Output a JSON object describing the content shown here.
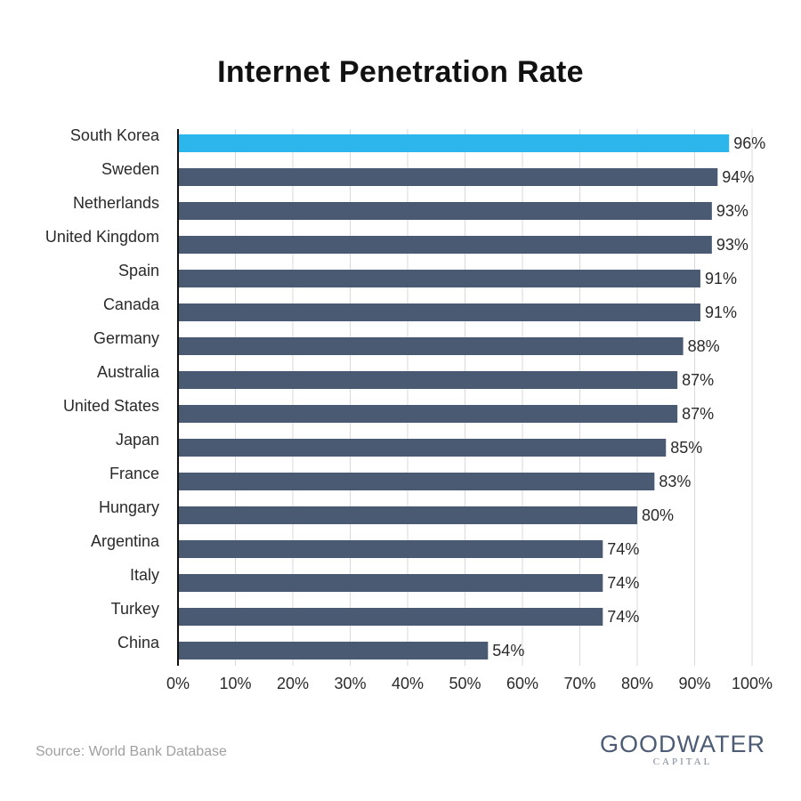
{
  "chart_data": {
    "type": "bar",
    "orientation": "horizontal",
    "title": "Internet Penetration Rate",
    "categories": [
      "South Korea",
      "Sweden",
      "Netherlands",
      "United Kingdom",
      "Spain",
      "Canada",
      "Germany",
      "Australia",
      "United States",
      "Japan",
      "France",
      "Hungary",
      "Argentina",
      "Italy",
      "Turkey",
      "China"
    ],
    "values": [
      96,
      94,
      93,
      93,
      91,
      91,
      88,
      87,
      87,
      85,
      83,
      80,
      74,
      74,
      74,
      54
    ],
    "value_labels": [
      "96%",
      "94%",
      "93%",
      "93%",
      "91%",
      "91%",
      "88%",
      "87%",
      "87%",
      "85%",
      "83%",
      "80%",
      "74%",
      "74%",
      "74%",
      "54%"
    ],
    "highlight_index": 0,
    "xlim": [
      0,
      100
    ],
    "x_ticks": [
      0,
      10,
      20,
      30,
      40,
      50,
      60,
      70,
      80,
      90,
      100
    ],
    "x_tick_labels": [
      "0%",
      "10%",
      "20%",
      "30%",
      "40%",
      "50%",
      "60%",
      "70%",
      "80%",
      "90%",
      "100%"
    ],
    "grid": "vertical",
    "legend": "none",
    "colors": {
      "bar": "#4a5a72",
      "highlight": "#2db6ec",
      "grid": "#d9d9d9",
      "axis": "#111111"
    }
  },
  "footer": {
    "source": "Source: World Bank Database",
    "logo_main": "GOODWATER",
    "logo_sub": "CAPITAL"
  }
}
